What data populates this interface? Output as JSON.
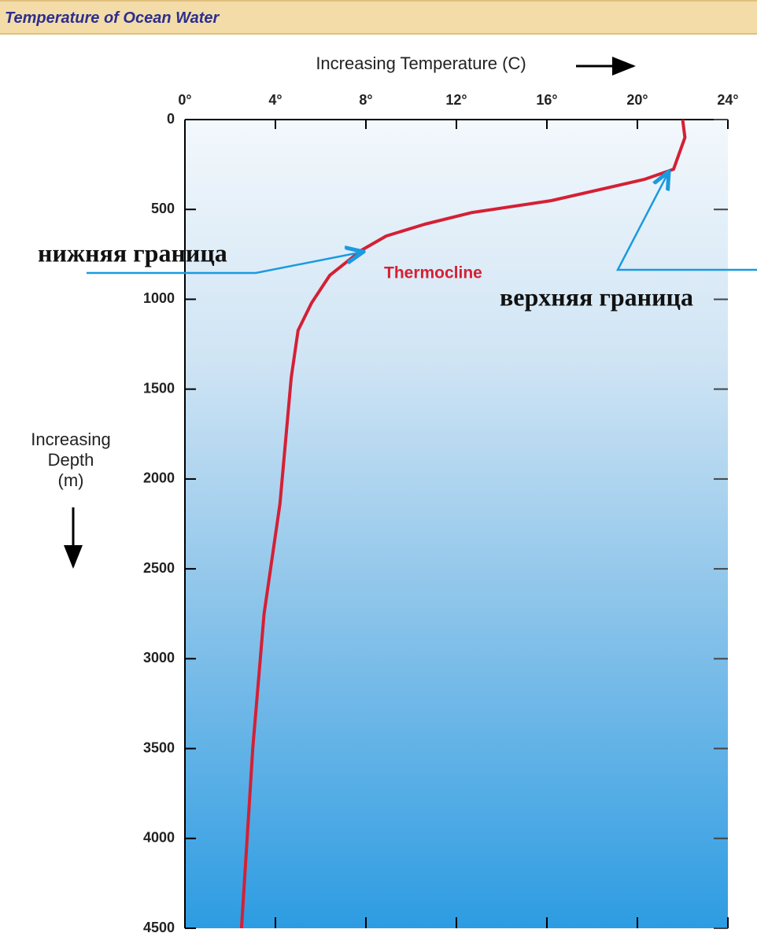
{
  "header": {
    "title": "Temperature of Ocean Water"
  },
  "chart_data": {
    "type": "line",
    "xlabel": "Increasing Temperature (C)",
    "ylabel": [
      "Increasing",
      "Depth",
      "(m)"
    ],
    "x": [
      22,
      22.1,
      21.6,
      20.3,
      16.2,
      12.7,
      10.6,
      8.9,
      7.8,
      6.4,
      5.6,
      5.0,
      4.7,
      4.2,
      3.5,
      3.0,
      2.5
    ],
    "values": [
      0,
      100,
      276,
      333,
      451,
      517,
      582,
      648,
      727,
      867,
      1020,
      1173,
      1436,
      2137,
      2750,
      3494,
      4500
    ],
    "color": "#d42035",
    "xlim": [
      0,
      24
    ],
    "xticks": [
      {
        "value": 0,
        "label": "0°"
      },
      {
        "value": 4,
        "label": "4°"
      },
      {
        "value": 8,
        "label": "8°"
      },
      {
        "value": 12,
        "label": "12°"
      },
      {
        "value": 16,
        "label": "16°"
      },
      {
        "value": 20,
        "label": "20°"
      },
      {
        "value": 24,
        "label": "24°"
      }
    ],
    "ylim": [
      0,
      4500
    ],
    "yticks": [
      0,
      500,
      1000,
      1500,
      2000,
      2500,
      3000,
      3500,
      4000,
      4500
    ],
    "y_inverted": true,
    "annotations": {
      "curve": "Thermocline",
      "lower": "нижняя граница",
      "upper": "верхняя граница"
    }
  }
}
